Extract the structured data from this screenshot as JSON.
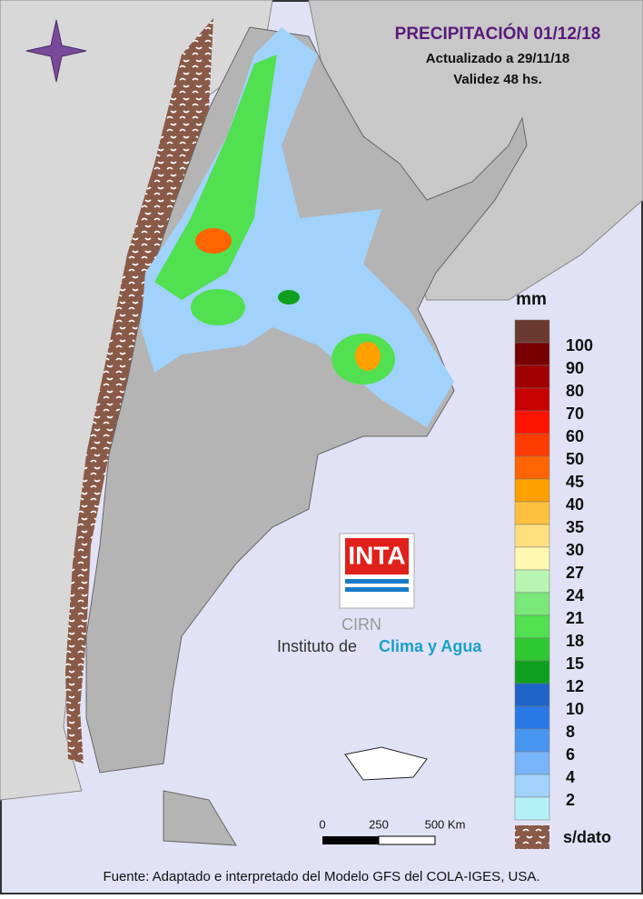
{
  "header": {
    "title": "PRECIPITACIÓN 01/12/18",
    "updated": "Actualizado a 29/11/18",
    "validity": "Validez 48 hs."
  },
  "legend": {
    "unit": "mm",
    "colors": [
      "#6b3a2e",
      "#780000",
      "#a00000",
      "#c80000",
      "#ff1400",
      "#ff3c00",
      "#ff6400",
      "#ffa000",
      "#ffc040",
      "#ffe080",
      "#fff8b0",
      "#b8f5b0",
      "#78e878",
      "#50e050",
      "#30c830",
      "#10a020",
      "#1e64c8",
      "#2878e6",
      "#4696f0",
      "#78b4f8",
      "#a0d2fc",
      "#b4f0f8"
    ],
    "labels": [
      100,
      90,
      80,
      70,
      60,
      50,
      45,
      40,
      35,
      30,
      27,
      24,
      21,
      18,
      15,
      12,
      10,
      8,
      6,
      4,
      2
    ],
    "no_data_label": "s/dato"
  },
  "scale_bar": {
    "labels": [
      "0",
      "250",
      "500 Km"
    ]
  },
  "logo": {
    "brand": "INTA",
    "center": "CIRN",
    "institute_prefix": "Instituto de",
    "institute_name": "Clima y Agua"
  },
  "footer": "Fuente: Adaptado e interpretado del Modelo GFS del COLA-IGES, USA."
}
